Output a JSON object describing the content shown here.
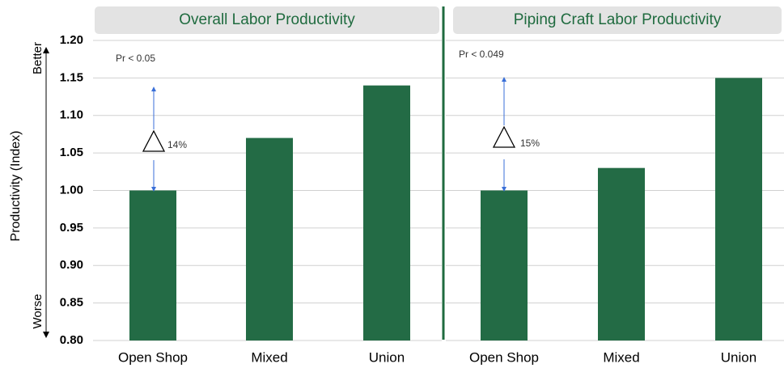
{
  "y_axis": {
    "label": "Productivity (Index)",
    "top_label": "Better",
    "bottom_label": "Worse",
    "ylim": [
      0.8,
      1.2
    ],
    "yticks": [
      {
        "value": 0.8,
        "label": "0.80"
      },
      {
        "value": 0.85,
        "label": "0.85"
      },
      {
        "value": 0.9,
        "label": "0.90"
      },
      {
        "value": 0.95,
        "label": "0.95"
      },
      {
        "value": 1.0,
        "label": "1.00"
      },
      {
        "value": 1.05,
        "label": "1.05"
      },
      {
        "value": 1.1,
        "label": "1.10"
      },
      {
        "value": 1.15,
        "label": "1.15"
      },
      {
        "value": 1.2,
        "label": "1.20"
      }
    ],
    "grid": true
  },
  "chart_data": [
    {
      "type": "bar",
      "title": "Overall Labor Productivity",
      "categories": [
        "Open Shop",
        "Mixed",
        "Union"
      ],
      "values": [
        1.0,
        1.07,
        1.14
      ],
      "color": "#236b45",
      "significance": "Pr < 0.05",
      "difference_label": "14%"
    },
    {
      "type": "bar",
      "title": "Piping Craft Labor Productivity",
      "categories": [
        "Open Shop",
        "Mixed",
        "Union"
      ],
      "values": [
        1.0,
        1.03,
        1.15
      ],
      "color": "#236b45",
      "significance": "Pr < 0.049",
      "difference_label": "15%"
    }
  ]
}
